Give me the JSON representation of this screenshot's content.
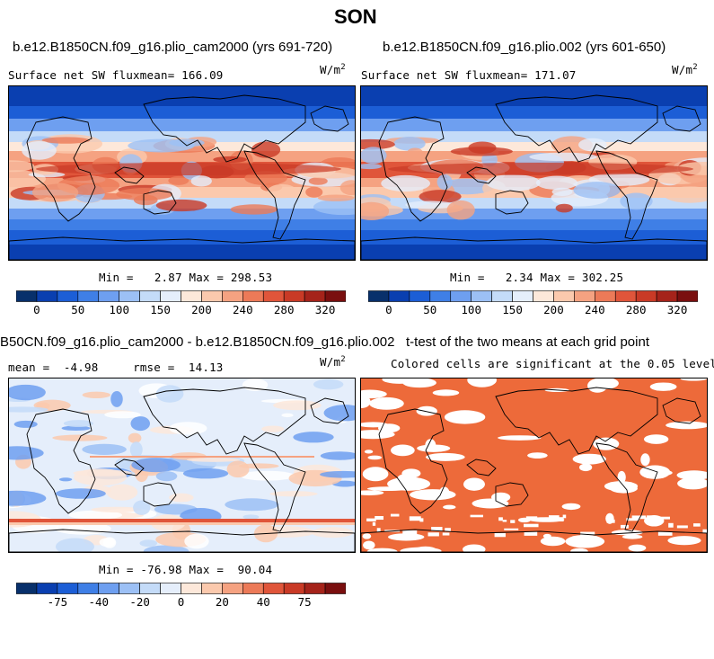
{
  "figure_title": "SON",
  "panels": [
    {
      "case_title": "b.e12.B1850CN.f09_g16.plio_cam2000 (yrs 691-720)",
      "variable_label": "Surface net SW flux",
      "mean_label": "mean=",
      "mean_value": "166.09",
      "units": "W/m",
      "units_sup": "2",
      "min_label": "Min =",
      "min_value": "2.87",
      "max_label": "Max =",
      "max_value": "298.53"
    },
    {
      "case_title": "b.e12.B1850CN.f09_g16.plio.002 (yrs 601-650)",
      "variable_label": "Surface net SW flux",
      "mean_label": "mean=",
      "mean_value": "171.07",
      "units": "W/m",
      "units_sup": "2",
      "min_label": "Min =",
      "min_value": "2.34",
      "max_label": "Max =",
      "max_value": "302.25"
    },
    {
      "case_title": "B50CN.f09_g16.plio_cam2000 - b.e12.B1850CN.f09_g16.plio.002",
      "mean_label": "mean =",
      "mean_value": "-4.98",
      "rmse_label": "rmse =",
      "rmse_value": "14.13",
      "units": "W/m",
      "units_sup": "2",
      "min_label": "Min =",
      "min_value": "-76.98",
      "max_label": "Max =",
      "max_value": "90.04"
    },
    {
      "case_title": "t-test of the two means at each grid point",
      "subtitle": "Colored cells are significant at the 0.05 level"
    }
  ],
  "colorbar_abs": {
    "colors": [
      "#08306b",
      "#0a3fb0",
      "#1c5ed6",
      "#3f7fe6",
      "#6e9ff0",
      "#9cc0f5",
      "#c4dbf8",
      "#e5eefb",
      "#fde8da",
      "#fbc9ad",
      "#f5a281",
      "#ec7a58",
      "#e0553a",
      "#c93a26",
      "#a5231a",
      "#7a0f0f"
    ],
    "ticks": [
      "0",
      "50",
      "100",
      "150",
      "200",
      "240",
      "280",
      "320"
    ]
  },
  "colorbar_diff": {
    "colors": [
      "#08306b",
      "#0a3fb0",
      "#1c5ed6",
      "#3f7fe6",
      "#6e9ff0",
      "#9cc0f5",
      "#c4dbf8",
      "#e5eefb",
      "#fde8da",
      "#fbc9ad",
      "#f5a281",
      "#ec7a58",
      "#e0553a",
      "#c93a26",
      "#a5231a",
      "#7a0f0f"
    ],
    "ticks": [
      "-75",
      "-40",
      "-20",
      "0",
      "20",
      "40",
      "75"
    ]
  },
  "chart_data": [
    {
      "type": "heatmap",
      "title": "b.e12.B1850CN.f09_g16.plio_cam2000 (yrs 691-720)",
      "variable": "Surface net SW flux",
      "units": "W/m2",
      "mean": 166.09,
      "min": 2.87,
      "max": 298.53,
      "colorbar_ticks": [
        0,
        50,
        100,
        150,
        200,
        240,
        280,
        320
      ]
    },
    {
      "type": "heatmap",
      "title": "b.e12.B1850CN.f09_g16.plio.002 (yrs 601-650)",
      "variable": "Surface net SW flux",
      "units": "W/m2",
      "mean": 171.07,
      "min": 2.34,
      "max": 302.25,
      "colorbar_ticks": [
        0,
        50,
        100,
        150,
        200,
        240,
        280,
        320
      ]
    },
    {
      "type": "heatmap",
      "title": "B50CN.f09_g16.plio_cam2000 - b.e12.B1850CN.f09_g16.plio.002",
      "units": "W/m2",
      "mean": -4.98,
      "rmse": 14.13,
      "min": -76.98,
      "max": 90.04,
      "colorbar_ticks": [
        -75,
        -40,
        -20,
        0,
        20,
        40,
        75
      ]
    },
    {
      "type": "heatmap",
      "title": "t-test of the two means at each grid point",
      "subtitle": "Colored cells are significant at the 0.05 level"
    }
  ]
}
